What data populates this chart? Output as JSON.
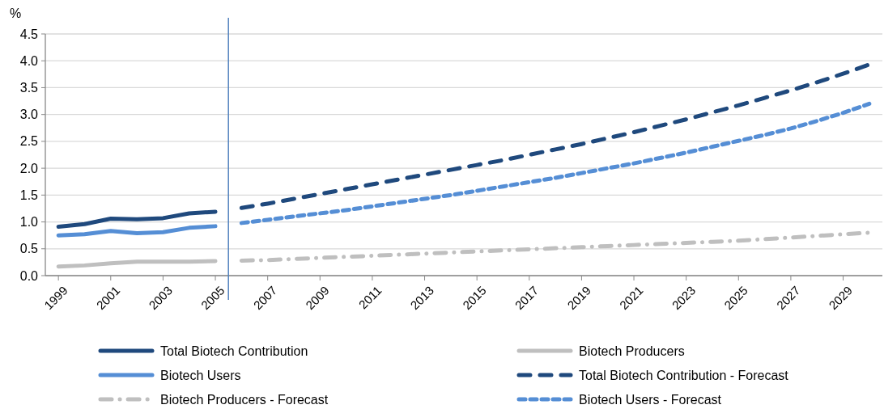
{
  "chart_data": {
    "type": "line",
    "ylabel": "%",
    "xlim": [
      1998.5,
      2030.5
    ],
    "ylim": [
      0,
      4.5
    ],
    "yticks": [
      {
        "value": 0,
        "label": "0.0"
      },
      {
        "value": 0.5,
        "label": "0.5"
      },
      {
        "value": 1,
        "label": "1.0"
      },
      {
        "value": 1.5,
        "label": "1.5"
      },
      {
        "value": 2,
        "label": "2.0"
      },
      {
        "value": 2.5,
        "label": "2.5"
      },
      {
        "value": 3,
        "label": "3.0"
      },
      {
        "value": 3.5,
        "label": "3.5"
      },
      {
        "value": 4,
        "label": "4.0"
      },
      {
        "value": 4.5,
        "label": "4.5"
      }
    ],
    "xticks": [
      1999,
      2001,
      2003,
      2005,
      2007,
      2009,
      2011,
      2013,
      2015,
      2017,
      2019,
      2021,
      2023,
      2025,
      2027,
      2029
    ],
    "grid": "y",
    "legend": "bottom",
    "marker": "none",
    "ref_lines": [
      {
        "axis": "x",
        "value": 2005.5,
        "color": "#4f81bd",
        "line_style": "solid"
      }
    ],
    "series": [
      {
        "name": "Total Biotech Contribution",
        "color": "#1f497d",
        "line_style": "solid",
        "x": [
          1999,
          2000,
          2001,
          2002,
          2003,
          2004,
          2005
        ],
        "values": [
          0.91,
          0.96,
          1.06,
          1.05,
          1.07,
          1.16,
          1.19
        ]
      },
      {
        "name": "Biotech Producers",
        "color": "#bfbfbf",
        "line_style": "solid",
        "x": [
          1999,
          2000,
          2001,
          2002,
          2003,
          2004,
          2005
        ],
        "values": [
          0.17,
          0.19,
          0.23,
          0.26,
          0.26,
          0.26,
          0.27
        ]
      },
      {
        "name": "Biotech Users",
        "color": "#558ed5",
        "line_style": "solid",
        "x": [
          1999,
          2000,
          2001,
          2002,
          2003,
          2004,
          2005
        ],
        "values": [
          0.75,
          0.77,
          0.83,
          0.79,
          0.81,
          0.89,
          0.92
        ]
      },
      {
        "name": "Total Biotech Contribution - Forecast",
        "color": "#1f497d",
        "line_style": "dashed",
        "x": [
          2006,
          2007,
          2008,
          2009,
          2010,
          2011,
          2012,
          2013,
          2014,
          2015,
          2016,
          2017,
          2018,
          2019,
          2020,
          2021,
          2022,
          2023,
          2024,
          2025,
          2026,
          2027,
          2028,
          2029,
          2030
        ],
        "values": [
          1.26,
          1.34,
          1.43,
          1.52,
          1.61,
          1.7,
          1.79,
          1.88,
          1.97,
          2.06,
          2.15,
          2.25,
          2.35,
          2.45,
          2.56,
          2.67,
          2.79,
          2.91,
          3.04,
          3.17,
          3.31,
          3.45,
          3.6,
          3.76,
          3.93
        ]
      },
      {
        "name": "Biotech Producers - Forecast",
        "color": "#bfbfbf",
        "line_style": "dashdot",
        "x": [
          2006,
          2007,
          2008,
          2009,
          2010,
          2011,
          2012,
          2013,
          2014,
          2015,
          2016,
          2017,
          2018,
          2019,
          2020,
          2021,
          2022,
          2023,
          2024,
          2025,
          2026,
          2027,
          2028,
          2029,
          2030
        ],
        "values": [
          0.28,
          0.29,
          0.31,
          0.33,
          0.35,
          0.37,
          0.39,
          0.41,
          0.43,
          0.45,
          0.47,
          0.49,
          0.51,
          0.53,
          0.55,
          0.57,
          0.59,
          0.61,
          0.63,
          0.65,
          0.68,
          0.71,
          0.74,
          0.77,
          0.8
        ]
      },
      {
        "name": "Biotech Users - Forecast",
        "color": "#558ed5",
        "line_style": "dotted",
        "x": [
          2006,
          2007,
          2008,
          2009,
          2010,
          2011,
          2012,
          2013,
          2014,
          2015,
          2016,
          2017,
          2018,
          2019,
          2020,
          2021,
          2022,
          2023,
          2024,
          2025,
          2026,
          2027,
          2028,
          2029,
          2030
        ],
        "values": [
          0.98,
          1.04,
          1.1,
          1.16,
          1.22,
          1.29,
          1.36,
          1.43,
          1.5,
          1.58,
          1.66,
          1.74,
          1.82,
          1.91,
          2.0,
          2.09,
          2.19,
          2.29,
          2.4,
          2.51,
          2.62,
          2.74,
          2.88,
          3.03,
          3.2
        ]
      }
    ]
  }
}
